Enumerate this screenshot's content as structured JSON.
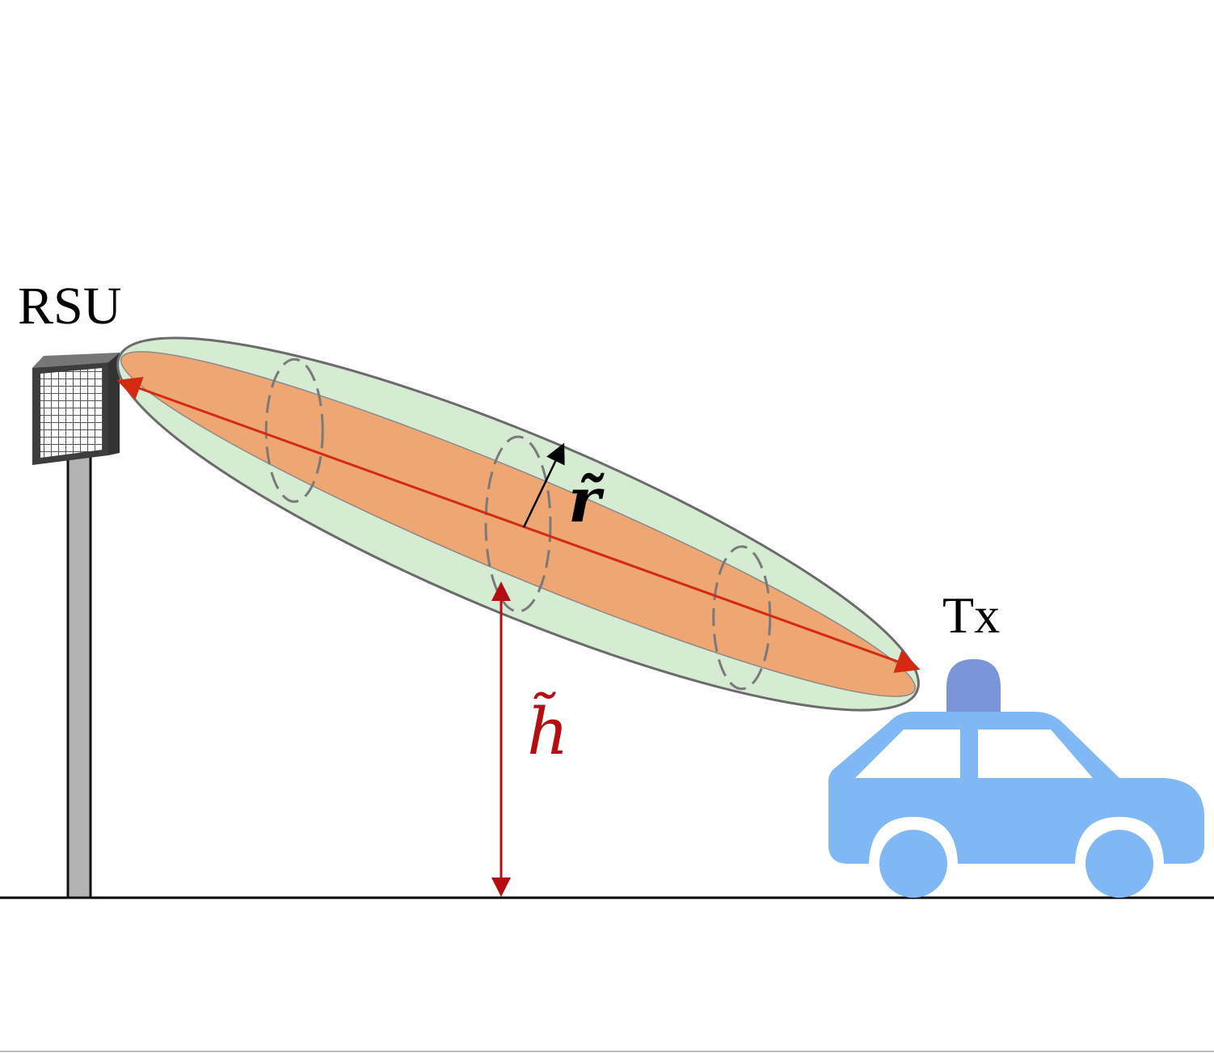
{
  "labels": {
    "rsu": "RSU",
    "tx": "Tx",
    "r_tilde": "r̃",
    "h_tilde": "h̃"
  },
  "colors": {
    "outer_ellipsoid_fill": "#d6ecd2",
    "outer_ellipsoid_stroke": "#6b6b6b",
    "inner_ellipsoid_fill": "#eea672",
    "axis_arrow": "#d42a0f",
    "height_arrow": "#b40d12",
    "radius_arrow": "#000000",
    "car_body": "#7fb8f5",
    "car_siren": "#7a96d8",
    "pole": "#b3b3b3",
    "panel": "#444444",
    "ground": "#000000"
  },
  "icons": {
    "rsu": "rsu-antenna-icon",
    "vehicle": "car-icon",
    "siren": "siren-icon"
  }
}
